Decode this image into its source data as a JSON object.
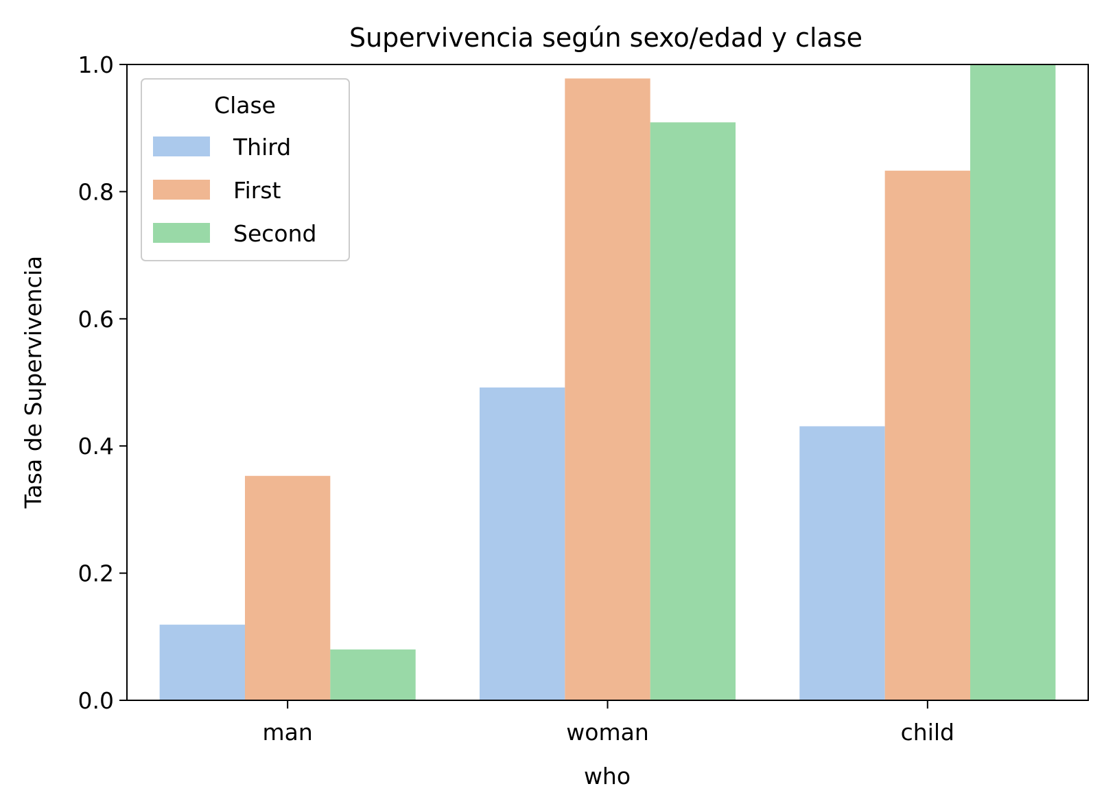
{
  "chart_data": {
    "type": "bar",
    "title": "Supervivencia según sexo/edad y clase",
    "xlabel": "who",
    "ylabel": "Tasa de Supervivencia",
    "categories": [
      "man",
      "woman",
      "child"
    ],
    "series": [
      {
        "name": "Third",
        "color": "#abc9ec",
        "values": [
          0.119,
          0.492,
          0.431
        ]
      },
      {
        "name": "First",
        "color": "#f0b792",
        "values": [
          0.353,
          0.978,
          0.833
        ]
      },
      {
        "name": "Second",
        "color": "#99d9a7",
        "values": [
          0.08,
          0.909,
          1.0
        ]
      }
    ],
    "ylim": [
      0,
      1.0
    ],
    "yticks": [
      "0.0",
      "0.2",
      "0.4",
      "0.6",
      "0.8",
      "1.0"
    ],
    "legend": {
      "title": "Clase",
      "position": "top-left"
    },
    "grid": false
  }
}
